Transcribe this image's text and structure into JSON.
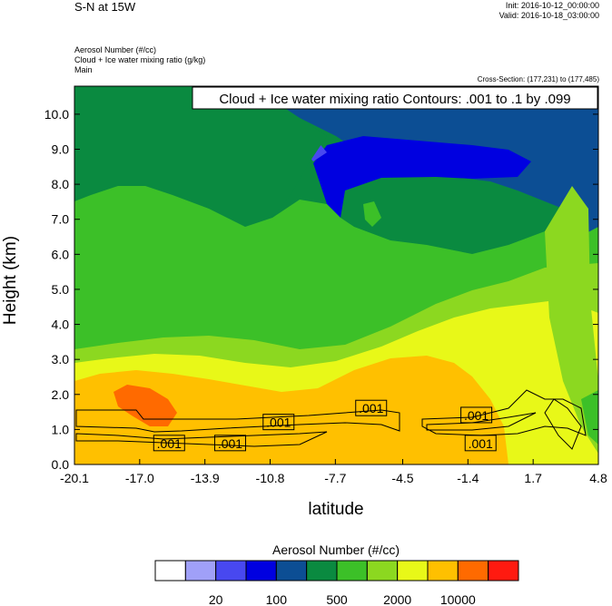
{
  "header": {
    "title": "S-N at 15W",
    "init": "Init: 2016-10-12_00:00:00",
    "valid": "Valid: 2016-10-18_03:00:00",
    "fields": [
      "Aerosol Number   (#/cc)",
      "Cloud + Ice water mixing ratio   (g/kg)",
      "Main"
    ],
    "cross_section": "Cross-Section: (177,231) to (177,485)"
  },
  "chart_data": {
    "type": "heatmap",
    "xlabel": "latitude",
    "ylabel": "Height (km)",
    "x_ticks": [
      "-20.1",
      "-17.0",
      "-13.9",
      "-10.8",
      "-7.7",
      "-4.5",
      "-1.4",
      "1.7",
      "4.8"
    ],
    "xlim": [
      -20.1,
      4.8
    ],
    "y_ticks": [
      "0.0",
      "1.0",
      "2.0",
      "3.0",
      "4.0",
      "5.0",
      "6.0",
      "7.0",
      "8.0",
      "9.0",
      "10.0"
    ],
    "ylim": [
      0,
      10.8
    ],
    "contour_info": "Cloud + Ice water mixing ratio Contours: .001 to .1 by .099",
    "contour_labels": [
      {
        "text": ".001",
        "x": -15.6,
        "y": 0.6
      },
      {
        "text": ".001",
        "x": -12.7,
        "y": 0.6
      },
      {
        "text": ".001",
        "x": -10.4,
        "y": 1.2
      },
      {
        "text": ".001",
        "x": -6.0,
        "y": 1.6
      },
      {
        "text": ".001",
        "x": -1.0,
        "y": 1.4
      },
      {
        "text": ".001",
        "x": -0.8,
        "y": 0.6
      }
    ],
    "colorbar": {
      "title": "Aerosol Number  (#/cc)",
      "colors": [
        "#ffffff",
        "#a0a0f8",
        "#4848f0",
        "#0000e0",
        "#0c4e94",
        "#0a8a40",
        "#3cc028",
        "#8cd820",
        "#e8f818",
        "#ffc000",
        "#ff6a00",
        "#ff1a10"
      ],
      "labels": [
        "20",
        "100",
        "500",
        "2000",
        "10000"
      ]
    },
    "grid": false,
    "legend": "bottom"
  }
}
